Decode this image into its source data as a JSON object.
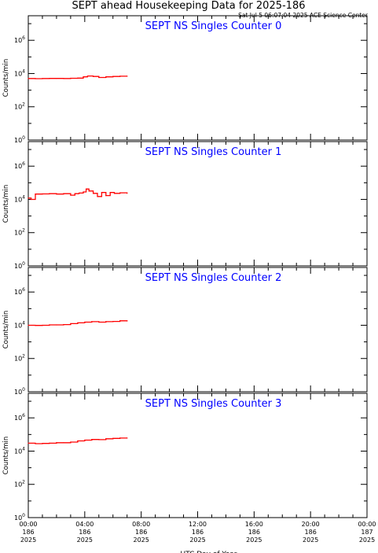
{
  "header": {
    "title": "SEPT ahead Housekeeping Data for 2025-186",
    "timestamp": "Sat Jul  5 06:07:04 2025 ACE Science Center"
  },
  "colors": {
    "trace": "#ff0000",
    "panel_title": "#0000ff",
    "axes": "#000000"
  },
  "chart_data": [
    {
      "type": "line",
      "title": "SEPT NS Singles Counter 0",
      "ylabel": "Counts/min",
      "xlabel": "",
      "yscale": "log",
      "ylim": [
        1,
        30000000
      ],
      "ytick_labels": [
        "10^0",
        "10^2",
        "10^4",
        "10^6"
      ],
      "xlim": [
        0,
        24
      ],
      "series": [
        {
          "values_x_hours": [
            0,
            0.5,
            1,
            1.5,
            2,
            2.5,
            3,
            3.5,
            3.9,
            4.2,
            4.6,
            5,
            5.5,
            6,
            6.5,
            7
          ],
          "values_y": [
            5000,
            4900,
            5000,
            5100,
            5100,
            5000,
            5200,
            5300,
            6300,
            7100,
            6700,
            5800,
            6300,
            6700,
            6900,
            7000
          ]
        }
      ]
    },
    {
      "type": "line",
      "title": "SEPT NS Singles Counter 1",
      "ylabel": "Counts/min",
      "xlabel": "",
      "yscale": "log",
      "ylim": [
        1,
        30000000
      ],
      "ytick_labels": [
        "10^0",
        "10^2",
        "10^4",
        "10^6"
      ],
      "xlim": [
        0,
        24
      ],
      "series": [
        {
          "values_x_hours": [
            0,
            0.2,
            0.5,
            1,
            1.5,
            2,
            2.5,
            3,
            3.3,
            3.6,
            3.9,
            4.1,
            4.3,
            4.6,
            4.9,
            5.2,
            5.5,
            5.8,
            6.1,
            6.5,
            7
          ],
          "values_y": [
            12000,
            10000,
            21000,
            21500,
            22000,
            21000,
            22000,
            18000,
            22000,
            24000,
            28000,
            42000,
            32000,
            23000,
            15000,
            26000,
            17000,
            26000,
            23000,
            25000,
            23000
          ]
        }
      ]
    },
    {
      "type": "line",
      "title": "SEPT NS Singles Counter 2",
      "ylabel": "Counts/min",
      "xlabel": "",
      "yscale": "log",
      "ylim": [
        1,
        30000000
      ],
      "ytick_labels": [
        "10^0",
        "10^2",
        "10^4",
        "10^6"
      ],
      "xlim": [
        0,
        24
      ],
      "series": [
        {
          "values_x_hours": [
            0,
            0.5,
            1,
            1.5,
            2,
            2.5,
            3,
            3.5,
            4,
            4.5,
            5,
            5.5,
            6,
            6.5,
            7
          ],
          "values_y": [
            10000,
            9800,
            10000,
            10500,
            10500,
            11000,
            12500,
            14000,
            15500,
            16500,
            15500,
            16500,
            17000,
            18500,
            18000
          ]
        }
      ]
    },
    {
      "type": "line",
      "title": "SEPT NS Singles Counter 3",
      "ylabel": "Counts/min",
      "xlabel": "",
      "yscale": "log",
      "ylim": [
        1,
        30000000
      ],
      "ytick_labels": [
        "10^0",
        "10^2",
        "10^4",
        "10^6"
      ],
      "xlim": [
        0,
        24
      ],
      "series": [
        {
          "values_x_hours": [
            0,
            0.5,
            1,
            1.5,
            2,
            2.5,
            3,
            3.5,
            4,
            4.5,
            5,
            5.5,
            6,
            6.5,
            7
          ],
          "values_y": [
            30000,
            28000,
            29000,
            30000,
            32000,
            32000,
            35000,
            41000,
            46000,
            50000,
            49000,
            55000,
            58000,
            61000,
            62000
          ]
        }
      ]
    }
  ],
  "x_axis": {
    "label": "UTC Day of Year",
    "ticks": [
      {
        "hours": 0,
        "time": "00:00",
        "doy": "186",
        "year": "2025"
      },
      {
        "hours": 4,
        "time": "04:00",
        "doy": "186",
        "year": "2025"
      },
      {
        "hours": 8,
        "time": "08:00",
        "doy": "186",
        "year": "2025"
      },
      {
        "hours": 12,
        "time": "12:00",
        "doy": "186",
        "year": "2025"
      },
      {
        "hours": 16,
        "time": "16:00",
        "doy": "186",
        "year": "2025"
      },
      {
        "hours": 20,
        "time": "20:00",
        "doy": "186",
        "year": "2025"
      },
      {
        "hours": 24,
        "time": "00:00",
        "doy": "187",
        "year": "2025"
      }
    ]
  }
}
